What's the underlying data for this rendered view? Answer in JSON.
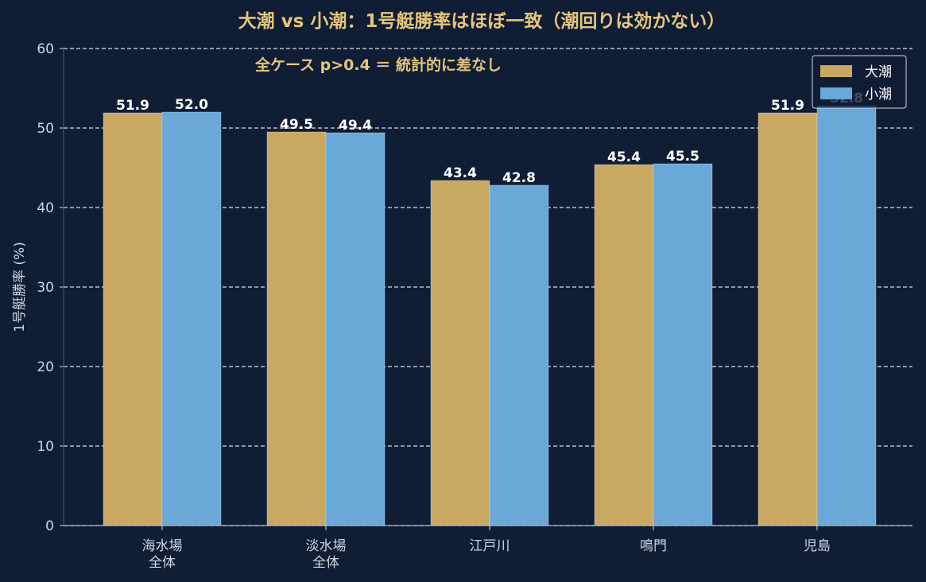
{
  "chart_data": {
    "type": "bar",
    "title": "大潮 vs 小潮：1号艇勝率はほぼ一致（潮回りは効かない）",
    "annotation": "全ケース p>0.4 ＝ 統計的に差なし",
    "xlabel": "",
    "ylabel": "1号艇勝率 (%)",
    "ylim": [
      0,
      60
    ],
    "yticks": [
      0,
      10,
      20,
      30,
      40,
      50,
      60
    ],
    "grid": true,
    "legend_position": "top-right",
    "categories": [
      [
        "海水場",
        "全体"
      ],
      [
        "淡水場",
        "全体"
      ],
      [
        "江戸川"
      ],
      [
        "鳴門"
      ],
      [
        "児島"
      ]
    ],
    "series": [
      {
        "name": "大潮",
        "color": "#c9a862",
        "values": [
          51.9,
          49.5,
          43.4,
          45.4,
          51.9
        ],
        "labels": [
          "51.9",
          "49.5",
          "43.4",
          "45.4",
          "51.9"
        ]
      },
      {
        "name": "小潮",
        "color": "#6aa8d8",
        "values": [
          52.0,
          49.4,
          42.8,
          45.5,
          52.8
        ],
        "labels": [
          "52.0",
          "49.4",
          "42.8",
          "45.5",
          "52.8"
        ]
      }
    ],
    "colors": {
      "background": "#0f1d35",
      "grid": "#d9dee8",
      "axis": "#cfd6e2",
      "title": "#e6c57a",
      "value_label": "#ffffff",
      "legend_border": "#cfd6e2",
      "legend_background": "#0f1d35"
    }
  }
}
